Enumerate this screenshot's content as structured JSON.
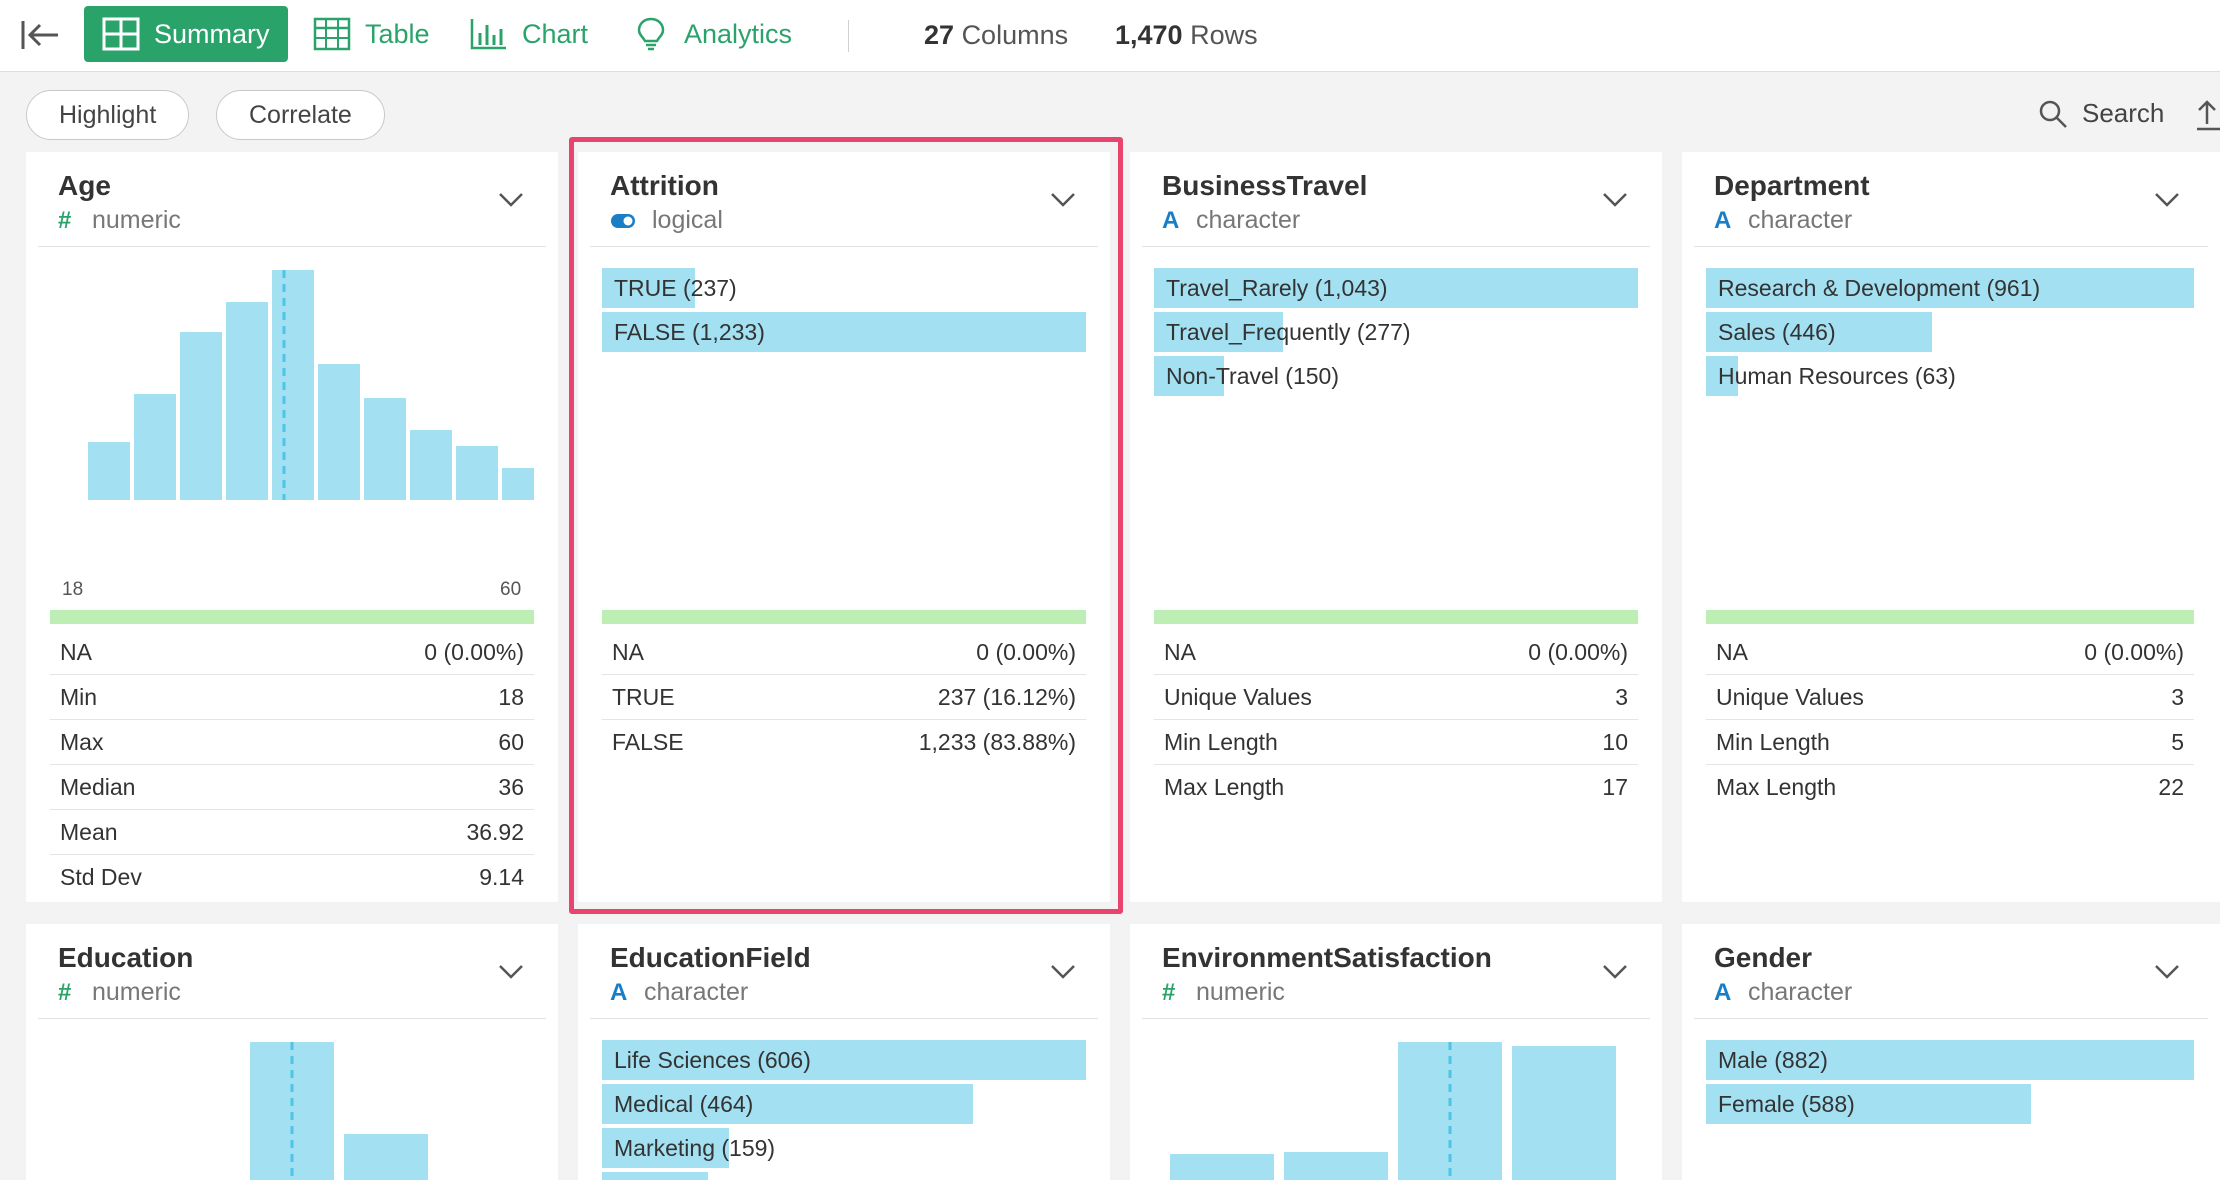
{
  "toolbar": {
    "tabs": [
      {
        "label": "Summary",
        "icon": "grid-icon"
      },
      {
        "label": "Table",
        "icon": "table-icon"
      },
      {
        "label": "Chart",
        "icon": "bar-chart-icon"
      },
      {
        "label": "Analytics",
        "icon": "lightbulb-icon"
      }
    ],
    "columns_count": "27",
    "columns_word": "Columns",
    "rows_count": "1,470",
    "rows_word": "Rows"
  },
  "subbar": {
    "highlight": "Highlight",
    "correlate": "Correlate",
    "search": "Search"
  },
  "colors": {
    "accent": "#2aa36b",
    "bar": "#a3e0f2",
    "na_bar": "#bdefb4",
    "highlight": "#e9456c"
  },
  "cards": {
    "age": {
      "title": "Age",
      "type_symbol": "#",
      "type": "numeric",
      "axis_min": "18",
      "axis_max": "60",
      "stats": [
        {
          "label": "NA",
          "value": "0 (0.00%)"
        },
        {
          "label": "Min",
          "value": "18"
        },
        {
          "label": "Max",
          "value": "60"
        },
        {
          "label": "Median",
          "value": "36"
        },
        {
          "label": "Mean",
          "value": "36.92"
        },
        {
          "label": "Std Dev",
          "value": "9.14"
        }
      ]
    },
    "attrition": {
      "title": "Attrition",
      "type": "logical",
      "type_icon": "toggle-icon",
      "bars": [
        {
          "label": "TRUE (237)",
          "value": 237
        },
        {
          "label": "FALSE (1,233)",
          "value": 1233
        }
      ],
      "stats": [
        {
          "label": "NA",
          "value": "0 (0.00%)"
        },
        {
          "label": "TRUE",
          "value": "237 (16.12%)"
        },
        {
          "label": "FALSE",
          "value": "1,233 (83.88%)"
        }
      ]
    },
    "business_travel": {
      "title": "BusinessTravel",
      "type_symbol": "A",
      "type": "character",
      "bars": [
        {
          "label": "Travel_Rarely (1,043)",
          "value": 1043
        },
        {
          "label": "Travel_Frequently (277)",
          "value": 277
        },
        {
          "label": "Non-Travel (150)",
          "value": 150
        }
      ],
      "stats": [
        {
          "label": "NA",
          "value": "0 (0.00%)"
        },
        {
          "label": "Unique Values",
          "value": "3"
        },
        {
          "label": "Min Length",
          "value": "10"
        },
        {
          "label": "Max Length",
          "value": "17"
        }
      ]
    },
    "department": {
      "title": "Department",
      "type_symbol": "A",
      "type": "character",
      "bars": [
        {
          "label": "Research & Development (961)",
          "value": 961
        },
        {
          "label": "Sales (446)",
          "value": 446
        },
        {
          "label": "Human Resources (63)",
          "value": 63
        }
      ],
      "stats": [
        {
          "label": "NA",
          "value": "0 (0.00%)"
        },
        {
          "label": "Unique Values",
          "value": "3"
        },
        {
          "label": "Min Length",
          "value": "5"
        },
        {
          "label": "Max Length",
          "value": "22"
        }
      ]
    },
    "education": {
      "title": "Education",
      "type_symbol": "#",
      "type": "numeric"
    },
    "education_field": {
      "title": "EducationField",
      "type_symbol": "A",
      "type": "character",
      "bars": [
        {
          "label": "Life Sciences (606)",
          "value": 606
        },
        {
          "label": "Medical (464)",
          "value": 464
        },
        {
          "label": "Marketing (159)",
          "value": 159
        },
        {
          "label": "",
          "value": 132
        }
      ]
    },
    "environment_satisfaction": {
      "title": "EnvironmentSatisfaction",
      "type_symbol": "#",
      "type": "numeric"
    },
    "gender": {
      "title": "Gender",
      "type_symbol": "A",
      "type": "character",
      "bars": [
        {
          "label": "Male (882)",
          "value": 882
        },
        {
          "label": "Female (588)",
          "value": 588
        }
      ]
    }
  }
}
